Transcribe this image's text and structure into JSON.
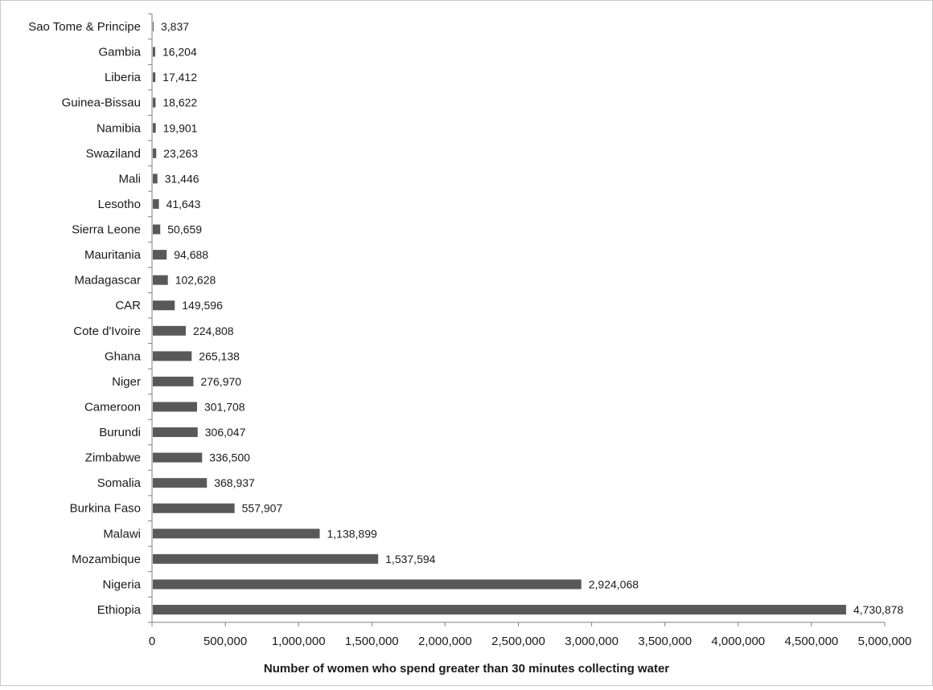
{
  "chart_data": {
    "type": "bar",
    "orientation": "horizontal",
    "title": "",
    "xlabel": "Number of women who spend greater than 30 minutes collecting water",
    "ylabel": "",
    "xlim": [
      0,
      5000000
    ],
    "xticks": [
      "0",
      "500,000",
      "1,000,000",
      "1,500,000",
      "2,000,000",
      "2,500,000",
      "3,000,000",
      "3,500,000",
      "4,000,000",
      "4,500,000",
      "5,000,000"
    ],
    "grid": false,
    "bar_color": "#595959",
    "categories": [
      "Sao Tome & Principe",
      "Gambia",
      "Liberia",
      "Guinea-Bissau",
      "Namibia",
      "Swaziland",
      "Mali",
      "Lesotho",
      "Sierra Leone",
      "Mauritania",
      "Madagascar",
      "CAR",
      "Cote d'Ivoire",
      "Ghana",
      "Niger",
      "Cameroon",
      "Burundi",
      "Zimbabwe",
      "Somalia",
      "Burkina Faso",
      "Malawi",
      "Mozambique",
      "Nigeria",
      "Ethiopia"
    ],
    "values": [
      3837,
      16204,
      17412,
      18622,
      19901,
      23263,
      31446,
      41643,
      50659,
      94688,
      102628,
      149596,
      224808,
      265138,
      276970,
      301708,
      306047,
      336500,
      368937,
      557907,
      1138899,
      1537594,
      2924068,
      4730878
    ],
    "value_labels": [
      "3,837",
      "16,204",
      "17,412",
      "18,622",
      "19,901",
      "23,263",
      "31,446",
      "41,643",
      "50,659",
      "94,688",
      "102,628",
      "149,596",
      "224,808",
      "265,138",
      "276,970",
      "301,708",
      "306,047",
      "336,500",
      "368,937",
      "557,907",
      "1,138,899",
      "1,537,594",
      "2,924,068",
      "4,730,878"
    ]
  }
}
